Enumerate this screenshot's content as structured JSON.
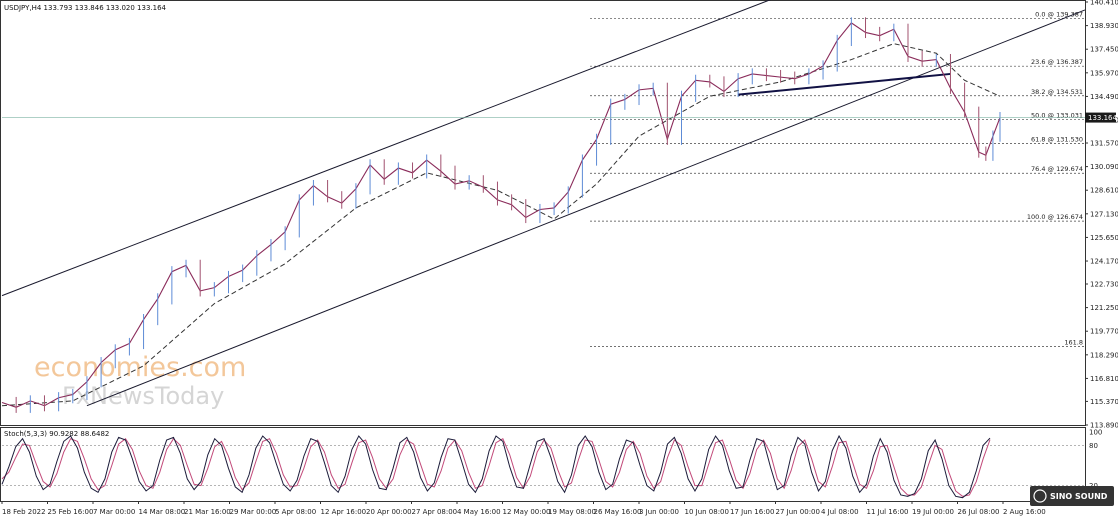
{
  "chart_data": [
    {
      "type": "line",
      "symbol_header": "USDJPY,H4  133.793 133.846 133.020 133.164",
      "y_ticks": [
        140.41,
        138.93,
        137.45,
        135.97,
        134.49,
        133.01,
        131.57,
        130.09,
        128.61,
        127.13,
        125.65,
        124.17,
        122.73,
        121.25,
        119.77,
        118.29,
        116.81,
        115.37,
        113.89
      ],
      "ylim": [
        113.89,
        140.41
      ],
      "x_labels": [
        "18 Feb 2022",
        "25 Feb 16:00",
        "7 Mar 00:00",
        "14 Mar 08:00",
        "21 Mar 16:00",
        "29 Mar 00:00",
        "5 Apr 08:00",
        "12 Apr 16:00",
        "20 Apr 00:00",
        "27 Apr 08:00",
        "4 May 16:00",
        "12 May 00:00",
        "19 May 08:00",
        "26 May 16:00",
        "3 Jun 00:00",
        "10 Jun 08:00",
        "17 Jun 16:00",
        "27 Jun 00:00",
        "4 Jul 08:00",
        "11 Jul 16:00",
        "19 Jul 00:00",
        "26 Jul 08:00",
        "2 Aug 16:00"
      ],
      "current_price": "133.164",
      "current_price_value": 133.164,
      "fibonacci_levels": [
        {
          "label": "0.0 @ 139.387",
          "value": 139.387
        },
        {
          "label": "23.6 @ 136.387",
          "value": 136.387
        },
        {
          "label": "38.2 @ 134.531",
          "value": 134.531
        },
        {
          "label": "50.0 @ 133.031",
          "value": 133.031
        },
        {
          "label": "61.8 @ 131.530",
          "value": 131.53
        },
        {
          "label": "76.4 @ 129.674",
          "value": 129.674
        },
        {
          "label": "100.0 @ 126.674",
          "value": 126.674
        },
        {
          "label": "161.8",
          "value": 118.82
        }
      ],
      "price_path": [
        [
          0,
          115.3
        ],
        [
          2,
          115.0
        ],
        [
          4,
          115.4
        ],
        [
          6,
          115.1
        ],
        [
          8,
          115.6
        ],
        [
          10,
          115.8
        ],
        [
          12,
          116.6
        ],
        [
          14,
          117.8
        ],
        [
          16,
          118.6
        ],
        [
          18,
          119.0
        ],
        [
          20,
          120.5
        ],
        [
          22,
          121.8
        ],
        [
          24,
          123.5
        ],
        [
          26,
          123.9
        ],
        [
          28,
          122.3
        ],
        [
          30,
          122.5
        ],
        [
          32,
          123.2
        ],
        [
          34,
          123.6
        ],
        [
          36,
          124.5
        ],
        [
          38,
          125.2
        ],
        [
          40,
          126.0
        ],
        [
          42,
          128.0
        ],
        [
          44,
          128.9
        ],
        [
          46,
          128.2
        ],
        [
          48,
          127.8
        ],
        [
          50,
          128.7
        ],
        [
          52,
          130.2
        ],
        [
          54,
          129.3
        ],
        [
          56,
          130.0
        ],
        [
          58,
          129.7
        ],
        [
          60,
          130.5
        ],
        [
          62,
          129.8
        ],
        [
          64,
          129.0
        ],
        [
          66,
          129.2
        ],
        [
          68,
          128.8
        ],
        [
          70,
          128.0
        ],
        [
          72,
          127.7
        ],
        [
          74,
          126.9
        ],
        [
          76,
          127.4
        ],
        [
          78,
          127.5
        ],
        [
          80,
          128.5
        ],
        [
          82,
          130.5
        ],
        [
          84,
          131.8
        ],
        [
          86,
          134.0
        ],
        [
          88,
          134.3
        ],
        [
          90,
          134.9
        ],
        [
          92,
          135.0
        ],
        [
          94,
          131.8
        ],
        [
          96,
          134.5
        ],
        [
          98,
          135.5
        ],
        [
          100,
          135.4
        ],
        [
          102,
          134.8
        ],
        [
          104,
          135.6
        ],
        [
          106,
          135.9
        ],
        [
          108,
          135.8
        ],
        [
          110,
          135.7
        ],
        [
          112,
          135.6
        ],
        [
          114,
          135.9
        ],
        [
          116,
          136.4
        ],
        [
          118,
          138.0
        ],
        [
          120,
          139.1
        ],
        [
          122,
          138.5
        ],
        [
          124,
          138.3
        ],
        [
          126,
          138.7
        ],
        [
          128,
          137.0
        ],
        [
          130,
          136.7
        ],
        [
          132,
          136.8
        ],
        [
          134,
          135.0
        ],
        [
          136,
          133.5
        ],
        [
          138,
          131.0
        ],
        [
          139,
          130.8
        ],
        [
          140,
          132.0
        ],
        [
          141,
          133.164
        ]
      ],
      "moving_average": [
        [
          0,
          115.1
        ],
        [
          10,
          115.4
        ],
        [
          20,
          117.6
        ],
        [
          30,
          121.5
        ],
        [
          40,
          124.0
        ],
        [
          50,
          127.5
        ],
        [
          60,
          129.7
        ],
        [
          70,
          128.6
        ],
        [
          78,
          126.8
        ],
        [
          84,
          129.0
        ],
        [
          90,
          132.0
        ],
        [
          100,
          134.5
        ],
        [
          110,
          135.4
        ],
        [
          120,
          136.8
        ],
        [
          126,
          137.8
        ],
        [
          132,
          137.2
        ],
        [
          136,
          135.5
        ],
        [
          141,
          134.5
        ]
      ],
      "channel": {
        "upper": [
          [
            0,
            122.0
          ],
          [
            110,
            140.8
          ]
        ],
        "lower": [
          [
            12,
            115.1
          ],
          [
            141,
            137.8
          ]
        ]
      },
      "neckline": [
        [
          104,
          134.6
        ],
        [
          134,
          135.9
        ]
      ]
    },
    {
      "type": "line",
      "indicator_label": "Stoch(5,3,3) 90.9282 88.6482",
      "y_ticks": [
        "100",
        "80",
        "20",
        "0"
      ],
      "ylim": [
        0,
        100
      ],
      "k_values": [
        22,
        48,
        78,
        90,
        70,
        34,
        14,
        22,
        56,
        86,
        94,
        76,
        40,
        16,
        10,
        30,
        70,
        92,
        88,
        60,
        26,
        12,
        20,
        58,
        88,
        92,
        68,
        30,
        14,
        26,
        66,
        90,
        80,
        46,
        18,
        10,
        36,
        76,
        94,
        84,
        52,
        22,
        12,
        28,
        64,
        90,
        86,
        54,
        20,
        10,
        34,
        74,
        94,
        82,
        44,
        16,
        14,
        46,
        84,
        92,
        70,
        32,
        12,
        24,
        62,
        90,
        88,
        56,
        22,
        10,
        30,
        72,
        94,
        86,
        48,
        18,
        16,
        52,
        86,
        90,
        62,
        26,
        10,
        36,
        80,
        94,
        78,
        40,
        14,
        22,
        60,
        88,
        84,
        50,
        20,
        12,
        40,
        82,
        92,
        68,
        30,
        12,
        30,
        74,
        94,
        80,
        42,
        16,
        18,
        58,
        90,
        86,
        48,
        14,
        20,
        64,
        92,
        82,
        40,
        12,
        26,
        72,
        94,
        76,
        34,
        10,
        22,
        64,
        90,
        70,
        28,
        6,
        4,
        8,
        30,
        72,
        88,
        60,
        20,
        4,
        2,
        10,
        42,
        80,
        91
      ],
      "d_values": [
        30,
        40,
        62,
        82,
        80,
        52,
        26,
        18,
        38,
        70,
        90,
        86,
        60,
        30,
        14,
        20,
        50,
        82,
        90,
        74,
        42,
        20,
        16,
        40,
        74,
        90,
        80,
        50,
        22,
        20,
        46,
        78,
        86,
        64,
        32,
        14,
        24,
        56,
        86,
        90,
        68,
        36,
        18,
        20,
        46,
        78,
        88,
        70,
        36,
        16,
        22,
        54,
        84,
        88,
        62,
        30,
        16,
        30,
        66,
        88,
        82,
        52,
        22,
        18,
        42,
        76,
        88,
        72,
        40,
        16,
        20,
        50,
        84,
        90,
        66,
        32,
        16,
        34,
        70,
        88,
        76,
        44,
        18,
        24,
        58,
        88,
        86,
        58,
        26,
        18,
        40,
        74,
        86,
        68,
        34,
        16,
        26,
        62,
        88,
        80,
        48,
        20,
        20,
        52,
        84,
        88,
        60,
        28,
        16,
        38,
        74,
        88,
        68,
        30,
        16,
        42,
        78,
        88,
        60,
        26,
        18,
        48,
        84,
        86,
        54,
        22,
        16,
        42,
        78,
        80,
        48,
        16,
        6,
        6,
        18,
        50,
        80,
        74,
        40,
        12,
        4,
        6,
        26,
        60,
        88.6
      ]
    }
  ],
  "watermark": {
    "line1": "economies.com",
    "line2": "FxNewsToday"
  },
  "logo": {
    "text": "SINO SOUND"
  }
}
